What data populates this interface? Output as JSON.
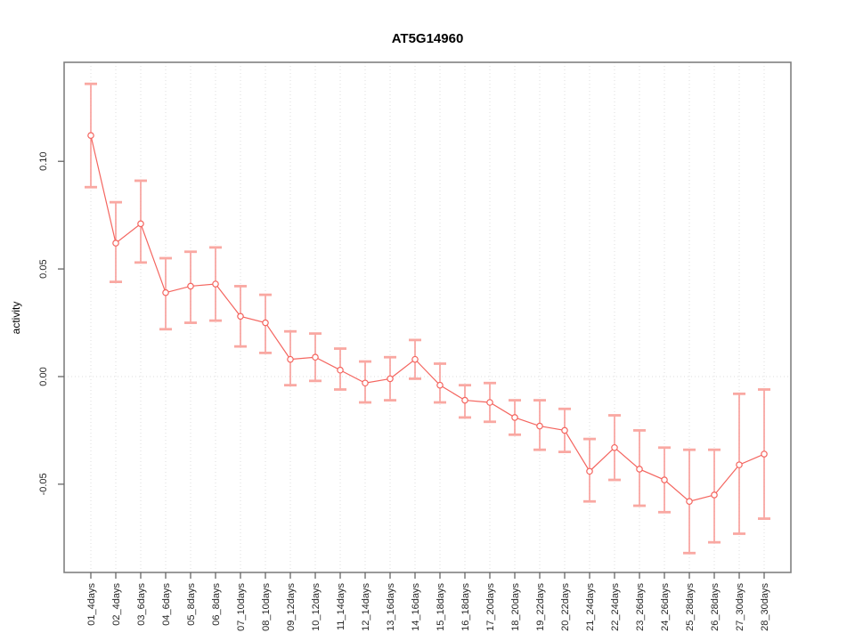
{
  "chart_data": {
    "type": "line",
    "title": "AT5G14960",
    "xlabel": "",
    "ylabel": "activity",
    "legend": "none",
    "marker": "open-circle",
    "grid": {
      "vertical": "dotted line at every category tick",
      "horizontal": "dotted line at y=0 only"
    },
    "categories": [
      "01_4days",
      "02_4days",
      "03_6days",
      "04_6days",
      "05_8days",
      "06_8days",
      "07_10days",
      "08_10days",
      "09_12days",
      "10_12days",
      "11_14days",
      "12_14days",
      "13_16days",
      "14_16days",
      "15_18days",
      "16_18days",
      "17_20days",
      "18_20days",
      "19_22days",
      "20_22days",
      "21_24days",
      "22_24days",
      "23_26days",
      "24_26days",
      "25_28days",
      "26_28days",
      "27_30days",
      "28_30days"
    ],
    "series": [
      {
        "name": "AT5G14960 activity",
        "values": [
          0.112,
          0.062,
          0.071,
          0.039,
          0.042,
          0.043,
          0.028,
          0.025,
          0.008,
          0.009,
          0.003,
          -0.003,
          -0.001,
          0.008,
          -0.004,
          -0.011,
          -0.012,
          -0.019,
          -0.023,
          -0.025,
          -0.044,
          -0.033,
          -0.043,
          -0.048,
          -0.058,
          -0.055,
          -0.041,
          -0.036
        ],
        "error_high": [
          0.136,
          0.081,
          0.091,
          0.055,
          0.058,
          0.06,
          0.042,
          0.038,
          0.021,
          0.02,
          0.013,
          0.007,
          0.009,
          0.017,
          0.006,
          -0.004,
          -0.003,
          -0.011,
          -0.011,
          -0.015,
          -0.029,
          -0.018,
          -0.025,
          -0.033,
          -0.034,
          -0.034,
          -0.008,
          -0.006
        ],
        "error_low": [
          0.088,
          0.044,
          0.053,
          0.022,
          0.025,
          0.026,
          0.014,
          0.011,
          -0.004,
          -0.002,
          -0.006,
          -0.012,
          -0.011,
          -0.001,
          -0.012,
          -0.019,
          -0.021,
          -0.027,
          -0.034,
          -0.035,
          -0.058,
          -0.048,
          -0.06,
          -0.063,
          -0.082,
          -0.077,
          -0.073,
          -0.066
        ]
      }
    ],
    "yticks": {
      "values": [
        0.1,
        0.05,
        0.0,
        -0.05
      ],
      "labels": [
        "0.10",
        "0.05",
        "0.00",
        "-0.05"
      ]
    },
    "ylim": [
      -0.091,
      0.146
    ],
    "colors": {
      "series": "#f4655f",
      "error_cap": "#f9a8a2",
      "grid": "#dcdcdc",
      "axis_box": "#808080",
      "tick": "#666666",
      "text": "#262626",
      "background": "#ffffff"
    }
  }
}
